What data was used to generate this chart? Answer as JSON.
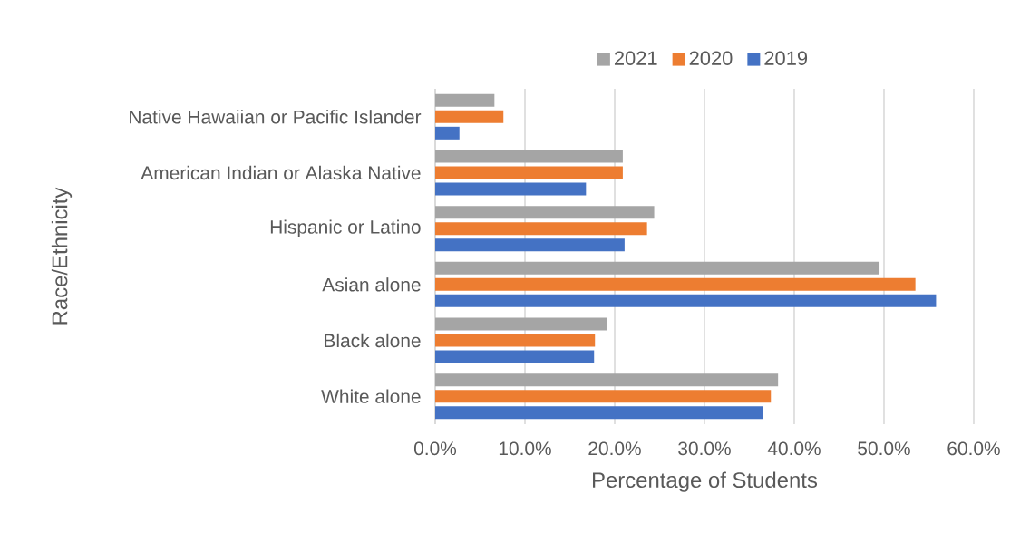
{
  "chart_data": {
    "type": "bar",
    "orientation": "horizontal",
    "xlabel": "Percentage of Students",
    "ylabel": "Race/Ethnicity",
    "categories": [
      "Native Hawaiian or Pacific Islander",
      "American Indian or Alaska Native",
      "Hispanic or Latino",
      "Asian alone",
      "Black alone",
      "White alone"
    ],
    "series": [
      {
        "name": "2021",
        "color": "#a5a5a5",
        "values": [
          6.6,
          20.9,
          24.4,
          49.5,
          19.1,
          38.2
        ]
      },
      {
        "name": "2020",
        "color": "#ed7d31",
        "values": [
          7.6,
          20.9,
          23.6,
          53.5,
          17.8,
          37.4
        ]
      },
      {
        "name": "2019",
        "color": "#4472c4",
        "values": [
          2.7,
          16.8,
          21.1,
          55.8,
          17.7,
          36.5
        ]
      }
    ],
    "xlim": [
      0,
      60
    ],
    "xticks": [
      {
        "value": 0,
        "label": "0.0%"
      },
      {
        "value": 10,
        "label": "10.0%"
      },
      {
        "value": 20,
        "label": "20.0%"
      },
      {
        "value": 30,
        "label": "30.0%"
      },
      {
        "value": 40,
        "label": "40.0%"
      },
      {
        "value": 50,
        "label": "50.0%"
      },
      {
        "value": 60,
        "label": "60.0%"
      }
    ],
    "grid": "x",
    "legend": "top"
  }
}
